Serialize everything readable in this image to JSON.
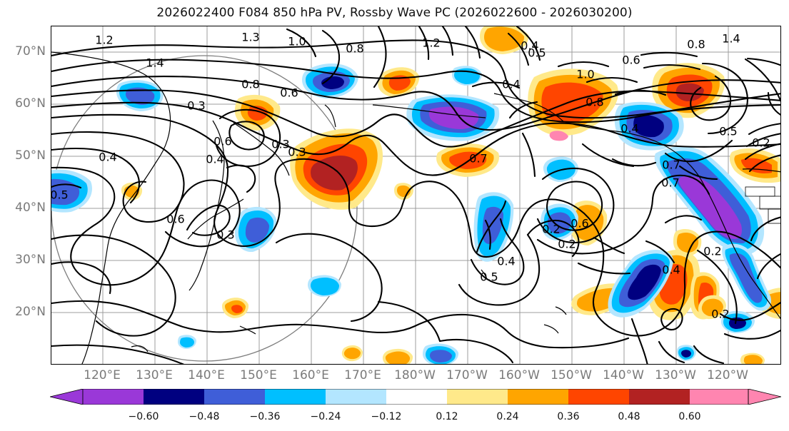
{
  "title": "2026022400 F084 850 hPa PV, Rossby Wave PC (2026022600 - 2026030200)",
  "map": {
    "lat_labels": [
      "70°N",
      "60°N",
      "50°N",
      "40°N",
      "30°N",
      "20°N"
    ],
    "lon_labels": [
      "120°E",
      "130°E",
      "140°E",
      "150°E",
      "160°E",
      "170°E",
      "180°W",
      "170°W",
      "160°W",
      "150°W",
      "140°W",
      "130°W",
      "120°W"
    ],
    "contour_labels": [
      "1.2",
      "1.3",
      "1.0",
      "0.8",
      "1.2",
      "1.4",
      "0.5",
      "0.4",
      "0.8",
      "1.4",
      "0.6",
      "0.8",
      "1.0",
      "0.8",
      "0.6",
      "0.3",
      "0.4",
      "0.6",
      "0.3",
      "0.3",
      "0.5",
      "0.7",
      "0.4",
      "0.7",
      "0.5",
      "0.4",
      "0.2",
      "0.6",
      "0.3",
      "0.4",
      "0.5",
      "0.6",
      "0.2",
      "0.7",
      "0.2",
      "0.4",
      "0.2",
      "0.4",
      "0.2"
    ]
  },
  "colorbar": {
    "colors": [
      "#9a38d8",
      "#000080",
      "#3f5ed8",
      "#00bfff",
      "#b3e6ff",
      "#ffffff",
      "#ffe98a",
      "#ffa500",
      "#ff4500",
      "#b22222",
      "#ff85b0"
    ],
    "ticks": [
      "−0.60",
      "−0.48",
      "−0.36",
      "−0.24",
      "−0.12",
      "0.12",
      "0.24",
      "0.36",
      "0.48",
      "0.60"
    ]
  }
}
